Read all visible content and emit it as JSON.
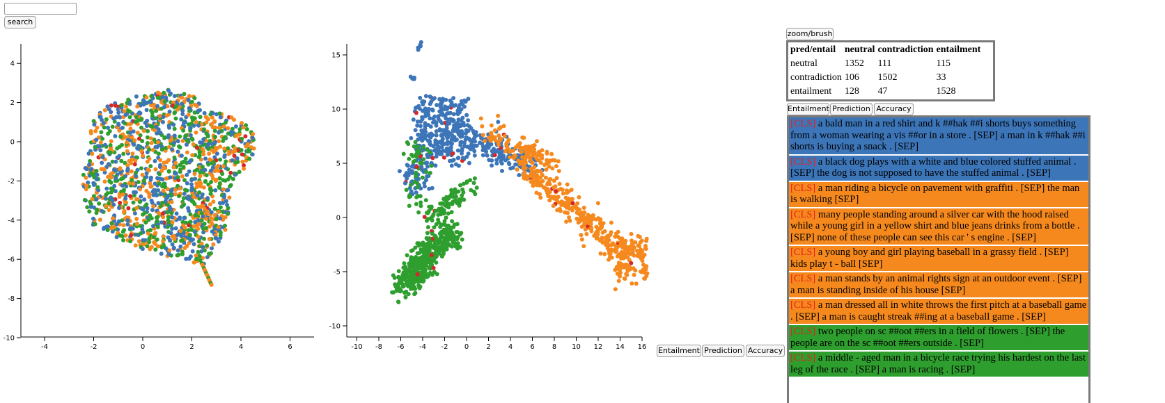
{
  "search": {
    "value": "",
    "button_label": "search"
  },
  "zoom_button_label": "zoom/brush",
  "colors": {
    "neutral": "#3c75b8",
    "contradiction": "#f5891e",
    "entailment": "#2e9e2e",
    "error": "#d62728"
  },
  "plot_left": {
    "x_ticks": [
      "-4",
      "-2",
      "0",
      "2",
      "4",
      "6"
    ],
    "y_ticks": [
      "4",
      "2",
      "0",
      "-2",
      "-4",
      "-6",
      "-8",
      "-10"
    ]
  },
  "plot_right": {
    "x_ticks": [
      "-10",
      "-8",
      "-6",
      "-4",
      "-2",
      "0",
      "2",
      "4",
      "6",
      "8",
      "10",
      "12",
      "14",
      "16"
    ],
    "y_ticks": [
      "15",
      "10",
      "5",
      "0",
      "-5",
      "-10"
    ]
  },
  "plot_buttons": [
    "Entailment",
    "Prediction",
    "Accuracy"
  ],
  "list_buttons": [
    "Entailment",
    "Prediction",
    "Accuracy"
  ],
  "confusion": {
    "header": [
      "pred/entail",
      "neutral",
      "contradiction",
      "entailment"
    ],
    "rows": [
      [
        "neutral",
        "1352",
        "111",
        "115"
      ],
      [
        "contradiction",
        "106",
        "1502",
        "33"
      ],
      [
        "entailment",
        "128",
        "47",
        "1528"
      ]
    ]
  },
  "examples": [
    {
      "cls": "[CLS]",
      "text": " a bald man in a red shirt and k ##hak ##i shorts buys something from a woman wearing a vis ##or in a store . [SEP] a man in k ##hak ##i shorts is buying a snack . [SEP]",
      "label": "neutral"
    },
    {
      "cls": "[CLS]",
      "text": " a black dog plays with a white and blue colored stuffed animal . [SEP] the dog is not supposed to have the stuffed animal . [SEP]",
      "label": "neutral"
    },
    {
      "cls": "[CLS]",
      "text": " a man riding a bicycle on pavement with graffiti . [SEP] the man is walking [SEP]",
      "label": "contradiction"
    },
    {
      "cls": "[CLS]",
      "text": " many people standing around a silver car with the hood raised while a young girl in a yellow shirt and blue jeans drinks from a bottle . [SEP] none of these people can see this car ' s engine . [SEP]",
      "label": "contradiction"
    },
    {
      "cls": "[CLS]",
      "text": " a young boy and girl playing baseball in a grassy field . [SEP] kids play t - ball [SEP]",
      "label": "contradiction"
    },
    {
      "cls": "[CLS]",
      "text": " a man stands by an animal rights sign at an outdoor event . [SEP] a man is standing inside of his house [SEP]",
      "label": "contradiction"
    },
    {
      "cls": "[CLS]",
      "text": " a man dressed all in white throws the first pitch at a baseball game . [SEP] a man is caught streak ##ing at a baseball game . [SEP]",
      "label": "contradiction"
    },
    {
      "cls": "[CLS]",
      "text": " two people on sc ##oot ##ers in a field of flowers . [SEP] the people are on the sc ##oot ##ers outside . [SEP]",
      "label": "entailment"
    },
    {
      "cls": "[CLS]",
      "text": " a middle - aged man in a bicycle race trying his hardest on the last leg of the race . [SEP] a man is racing . [SEP]",
      "label": "entailment"
    }
  ]
}
